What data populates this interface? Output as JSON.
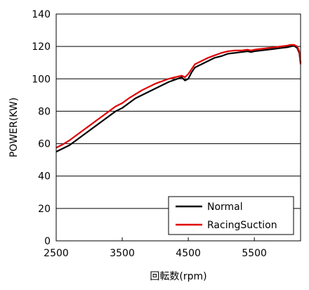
{
  "chart_data": {
    "type": "line",
    "title": "",
    "xlabel": "回転数(rpm)",
    "ylabel": "POWER(KW)",
    "xlim": [
      2500,
      6200
    ],
    "ylim": [
      0,
      140
    ],
    "xticks": [
      2500,
      3500,
      4500,
      5500
    ],
    "xtick_labels": [
      "2500",
      "3500",
      "4500",
      "5500"
    ],
    "yticks": [
      0,
      20,
      40,
      60,
      80,
      100,
      120,
      140
    ],
    "ytick_labels": [
      "0",
      "20",
      "40",
      "60",
      "80",
      "100",
      "120",
      "140"
    ],
    "grid": "horizontal",
    "legend_position": "bottom-right",
    "series": [
      {
        "name": "Normal",
        "color": "#000000",
        "x": [
          2500,
          2600,
          2700,
          2800,
          2900,
          3000,
          3100,
          3200,
          3300,
          3400,
          3500,
          3600,
          3700,
          3800,
          3900,
          4000,
          4100,
          4200,
          4300,
          4400,
          4450,
          4500,
          4550,
          4600,
          4700,
          4800,
          4900,
          5000,
          5100,
          5200,
          5300,
          5400,
          5450,
          5500,
          5600,
          5700,
          5800,
          5900,
          6000,
          6050,
          6100,
          6150,
          6180,
          6200
        ],
        "values": [
          55,
          57,
          59,
          62,
          65,
          68,
          71,
          74,
          77,
          80,
          82,
          85,
          88,
          90,
          92,
          94,
          96,
          98,
          99.5,
          101,
          99,
          100,
          104,
          107,
          109,
          111,
          113,
          114,
          115.5,
          116,
          116.5,
          117,
          116.5,
          117,
          117.5,
          118,
          118.5,
          119,
          119.5,
          120,
          120.5,
          119,
          116,
          110
        ]
      },
      {
        "name": "RacingSuction",
        "color": "#e00000",
        "x": [
          2500,
          2600,
          2700,
          2800,
          2900,
          3000,
          3100,
          3200,
          3300,
          3400,
          3500,
          3600,
          3700,
          3800,
          3900,
          4000,
          4100,
          4200,
          4300,
          4400,
          4450,
          4500,
          4550,
          4600,
          4700,
          4800,
          4900,
          5000,
          5100,
          5200,
          5300,
          5400,
          5450,
          5500,
          5600,
          5700,
          5800,
          5900,
          6000,
          6050,
          6100,
          6150,
          6180,
          6200
        ],
        "values": [
          57.5,
          59.5,
          62,
          65,
          68,
          71,
          74,
          77,
          80,
          83,
          85,
          88,
          90.5,
          93,
          95,
          97,
          98.5,
          100,
          101,
          102,
          101,
          103,
          106,
          109,
          111,
          113,
          114.5,
          116,
          117,
          117.5,
          117.5,
          118,
          117.5,
          118,
          118.5,
          119,
          119.5,
          120,
          120.5,
          121,
          121,
          120,
          117,
          109
        ]
      }
    ]
  }
}
